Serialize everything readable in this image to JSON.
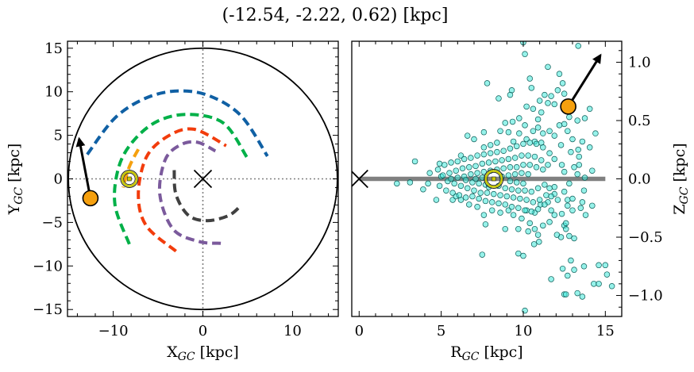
{
  "title": "(-12.54, -2.22, 0.62) [kpc]",
  "chart_data": [
    {
      "type": "line",
      "xlabel": "X",
      "xlabel_sub": "GC",
      "xlabel_unit": " [kpc]",
      "ylabel": "Y",
      "ylabel_sub": "GC",
      "ylabel_unit": " [kpc]",
      "xlim": [
        -15.1,
        15.1
      ],
      "ylim": [
        -15.8,
        15.8
      ],
      "xticks": [
        -10,
        0,
        10
      ],
      "yticks": [
        -15,
        -10,
        -5,
        0,
        5,
        10,
        15
      ],
      "grid": false,
      "boundary_circle_radius": 15,
      "galactic_center": [
        0,
        0
      ],
      "sun": [
        -8.2,
        0
      ],
      "object": [
        -12.54,
        -2.22
      ],
      "object_color": "#f5a00f",
      "velocity_arrow_to": [
        -13.8,
        4.6
      ],
      "arms": [
        {
          "color": "#1060a4",
          "points": [
            [
              -12.9,
              2.8
            ],
            [
              -9.8,
              7.0
            ],
            [
              -6.3,
              9.3
            ],
            [
              -2.7,
              10.1
            ],
            [
              0.8,
              9.5
            ],
            [
              4.3,
              7.2
            ],
            [
              7.2,
              2.6
            ]
          ]
        },
        {
          "color": "#00b048",
          "points": [
            [
              -8.2,
              -7.5
            ],
            [
              -9.8,
              -3.0
            ],
            [
              -9.4,
              1.3
            ],
            [
              -7.8,
              4.3
            ],
            [
              -5.1,
              6.6
            ],
            [
              -1.6,
              7.4
            ],
            [
              2.3,
              6.4
            ],
            [
              4.9,
              2.5
            ]
          ]
        },
        {
          "color": "#f23c0c",
          "points": [
            [
              -3.0,
              -8.3
            ],
            [
              -6.3,
              -5.4
            ],
            [
              -7.2,
              -1.8
            ],
            [
              -6.3,
              2.5
            ],
            [
              -3.9,
              4.9
            ],
            [
              -1.0,
              5.7
            ],
            [
              2.6,
              3.8
            ]
          ]
        },
        {
          "color": "#7b5a9c",
          "points": [
            [
              2.0,
              -7.4
            ],
            [
              -0.4,
              -7.2
            ],
            [
              -3.3,
              -5.8
            ],
            [
              -4.8,
              -1.8
            ],
            [
              -4.2,
              2.2
            ],
            [
              -2.5,
              3.9
            ],
            [
              -0.6,
              4.2
            ],
            [
              1.4,
              3.2
            ]
          ]
        },
        {
          "color": "#404040",
          "points": [
            [
              -3.2,
              1.0
            ],
            [
              -3.0,
              -1.8
            ],
            [
              -1.6,
              -4.2
            ],
            [
              0.5,
              -4.8
            ],
            [
              2.9,
              -4.2
            ],
            [
              4.3,
              -3.0
            ]
          ]
        },
        {
          "color": "#f5a00f",
          "points": [
            [
              -7.2,
              3.4
            ],
            [
              -8.2,
              1.4
            ],
            [
              -8.9,
              -1.0
            ]
          ]
        }
      ]
    },
    {
      "type": "scatter",
      "xlabel": "R",
      "xlabel_sub": "GC",
      "xlabel_unit": " [kpc]",
      "ylabel": "Z",
      "ylabel_sub": "GC",
      "ylabel_unit": " [kpc]",
      "xlim": [
        -0.45,
        16
      ],
      "ylim": [
        -1.18,
        1.18
      ],
      "xticks": [
        0,
        5,
        10,
        15
      ],
      "yticks": [
        -1.0,
        -0.5,
        0.0,
        0.5,
        1.0
      ],
      "ytick_labels": [
        "−1.0",
        "−0.5",
        "0.0",
        "0.5",
        "1.0"
      ],
      "grid": false,
      "disk_line": {
        "from": 0,
        "to": 15,
        "color": "#808080"
      },
      "galactic_center": [
        0,
        0
      ],
      "sun": [
        8.2,
        0
      ],
      "object": [
        12.74,
        0.62
      ],
      "object_color": "#f5a00f",
      "velocity_arrow_to": [
        14.7,
        1.06
      ],
      "marker_color": "#40e8d8",
      "points": [
        [
          10.0,
          1.17
        ],
        [
          10.1,
          1.07
        ],
        [
          13.35,
          1.14
        ],
        [
          11.5,
          0.96
        ],
        [
          12.2,
          0.9
        ],
        [
          7.8,
          0.82
        ],
        [
          10.4,
          0.86
        ],
        [
          10.5,
          0.78
        ],
        [
          12.4,
          0.82
        ],
        [
          9.3,
          0.76
        ],
        [
          9.2,
          0.72
        ],
        [
          8.5,
          0.69
        ],
        [
          12.1,
          0.76
        ],
        [
          12.5,
          0.73
        ],
        [
          11.3,
          0.72
        ],
        [
          11.7,
          0.71
        ],
        [
          11.0,
          0.67
        ],
        [
          11.5,
          0.65
        ],
        [
          11.9,
          0.64
        ],
        [
          10.2,
          0.62
        ],
        [
          10.6,
          0.6
        ],
        [
          14.05,
          0.6
        ],
        [
          11.1,
          0.57
        ],
        [
          13.75,
          0.52
        ],
        [
          9.75,
          0.52
        ],
        [
          9.35,
          0.49
        ],
        [
          8.9,
          0.48
        ],
        [
          10.9,
          0.51
        ],
        [
          10.1,
          0.46
        ],
        [
          12.8,
          0.53
        ],
        [
          13.3,
          0.5
        ],
        [
          14.4,
          0.39
        ],
        [
          6.6,
          0.37
        ],
        [
          7.0,
          0.34
        ],
        [
          7.6,
          0.4
        ],
        [
          8.6,
          0.41
        ],
        [
          9.1,
          0.4
        ],
        [
          3.4,
          0.15
        ],
        [
          14.05,
          0.27
        ],
        [
          14.2,
          0.07
        ],
        [
          13.75,
          0.01
        ],
        [
          2.3,
          -0.04
        ],
        [
          3.1,
          -0.03
        ],
        [
          3.9,
          -0.09
        ],
        [
          4.7,
          -0.18
        ],
        [
          5.7,
          -0.18
        ],
        [
          13.7,
          -0.1
        ],
        [
          13.6,
          -0.2
        ],
        [
          14.2,
          -0.23
        ],
        [
          13.8,
          -0.31
        ],
        [
          13.5,
          -0.25
        ],
        [
          7.5,
          -0.65
        ],
        [
          9.7,
          -0.64
        ],
        [
          10.0,
          -0.66
        ],
        [
          12.9,
          -0.7
        ],
        [
          12.4,
          -0.77
        ],
        [
          13.1,
          -0.78
        ],
        [
          13.7,
          -0.75
        ],
        [
          12.7,
          -0.83
        ],
        [
          14.6,
          -0.74
        ],
        [
          15.0,
          -0.74
        ],
        [
          15.1,
          -0.82
        ],
        [
          11.7,
          -0.86
        ],
        [
          14.3,
          -0.9
        ],
        [
          14.6,
          -0.9
        ],
        [
          15.4,
          -0.92
        ],
        [
          12.5,
          -0.99
        ],
        [
          12.6,
          -0.99
        ],
        [
          13.3,
          -0.98
        ],
        [
          13.6,
          -1.01
        ],
        [
          10.1,
          -1.13
        ],
        [
          13.1,
          -0.51
        ],
        [
          12.8,
          -0.49
        ],
        [
          12.3,
          -0.5
        ],
        [
          12.05,
          -0.48
        ],
        [
          10.96,
          -0.54
        ],
        [
          10.66,
          -0.56
        ],
        [
          10.9,
          -0.48
        ],
        [
          10.3,
          -0.45
        ],
        [
          9.7,
          -0.43
        ],
        [
          8.9,
          -0.43
        ],
        [
          7.7,
          -0.39
        ],
        [
          11.6,
          -0.37
        ],
        [
          12.5,
          -0.4
        ],
        [
          12.6,
          -0.43
        ],
        [
          12.6,
          -0.38
        ],
        [
          11.9,
          -0.31
        ],
        [
          12.35,
          -0.3
        ],
        [
          13.0,
          -0.27
        ],
        [
          12.7,
          -0.23
        ],
        [
          12.1,
          -0.18
        ],
        [
          12.7,
          -0.18
        ],
        [
          13.0,
          -0.17
        ],
        [
          12.8,
          -0.04
        ],
        [
          12.5,
          -0.11
        ],
        [
          11.9,
          -0.07
        ],
        [
          13.4,
          0.19
        ],
        [
          13.4,
          0.12
        ],
        [
          13.1,
          0.1
        ],
        [
          12.9,
          0.23
        ],
        [
          13.35,
          0.25
        ],
        [
          13.6,
          0.32
        ],
        [
          13.0,
          0.34
        ],
        [
          12.7,
          0.41
        ],
        [
          12.5,
          0.47
        ],
        [
          12.2,
          0.46
        ],
        [
          11.9,
          0.37
        ],
        [
          12.3,
          0.29
        ],
        [
          11.6,
          0.41
        ],
        [
          11.2,
          0.39
        ],
        [
          10.9,
          0.44
        ],
        [
          10.6,
          0.41
        ],
        [
          11.1,
          0.31
        ],
        [
          10.7,
          0.32
        ],
        [
          10.2,
          0.34
        ],
        [
          9.75,
          0.39
        ],
        [
          9.4,
          0.32
        ],
        [
          8.4,
          0.31
        ],
        [
          8.0,
          0.29
        ],
        [
          7.6,
          0.27
        ],
        [
          6.2,
          0.2
        ],
        [
          4.9,
          0.13
        ],
        [
          4.3,
          0.05
        ],
        [
          4.2,
          -0.04
        ],
        [
          12.35,
          0.12
        ],
        [
          12.5,
          0.06
        ],
        [
          13.3,
          0.04
        ],
        [
          11.9,
          0.17
        ],
        [
          11.9,
          -0.13
        ],
        [
          11.5,
          -0.2
        ],
        [
          11.7,
          -0.27
        ],
        [
          11.05,
          -0.22
        ],
        [
          10.7,
          -0.29
        ],
        [
          10.2,
          -0.27
        ],
        [
          9.9,
          -0.34
        ],
        [
          9.4,
          -0.31
        ],
        [
          9.1,
          -0.27
        ],
        [
          8.6,
          -0.29
        ],
        [
          8.1,
          -0.27
        ],
        [
          7.6,
          -0.31
        ],
        [
          7.2,
          -0.24
        ],
        [
          6.7,
          -0.22
        ],
        [
          6.2,
          -0.18
        ],
        [
          5.9,
          -0.15
        ],
        [
          10.4,
          -0.38
        ],
        [
          11.2,
          -0.4
        ],
        [
          10.7,
          -0.43
        ],
        [
          4.8,
          0.08
        ],
        [
          4.9,
          -0.06
        ],
        [
          5.0,
          0.02
        ],
        [
          5.2,
          0.12
        ],
        [
          5.3,
          -0.1
        ],
        [
          5.1,
          0.03
        ],
        [
          5.4,
          -0.02
        ],
        [
          5.6,
          0.14
        ],
        [
          5.7,
          -0.12
        ],
        [
          5.5,
          0.05
        ],
        [
          5.8,
          -0.04
        ],
        [
          5.6,
          0.0
        ],
        [
          6.0,
          0.15
        ],
        [
          6.1,
          -0.14
        ],
        [
          5.9,
          0.07
        ],
        [
          6.2,
          -0.06
        ],
        [
          6.0,
          0.01
        ],
        [
          6.4,
          0.17
        ],
        [
          6.5,
          -0.16
        ],
        [
          6.3,
          0.09
        ],
        [
          6.6,
          -0.08
        ],
        [
          6.4,
          0.02
        ],
        [
          6.5,
          -0.01
        ],
        [
          6.8,
          0.18
        ],
        [
          6.9,
          -0.15
        ],
        [
          6.7,
          0.1
        ],
        [
          7.0,
          -0.1
        ],
        [
          6.8,
          0.04
        ],
        [
          6.9,
          -0.03
        ],
        [
          7.2,
          0.2
        ],
        [
          7.3,
          -0.17
        ],
        [
          7.1,
          0.11
        ],
        [
          7.4,
          -0.12
        ],
        [
          7.2,
          0.05
        ],
        [
          7.3,
          -0.04
        ],
        [
          7.1,
          0.0
        ],
        [
          7.6,
          0.21
        ],
        [
          7.7,
          -0.19
        ],
        [
          7.5,
          0.13
        ],
        [
          7.8,
          -0.12
        ],
        [
          7.6,
          0.06
        ],
        [
          7.7,
          -0.05
        ],
        [
          7.5,
          0.01
        ],
        [
          8.0,
          0.22
        ],
        [
          8.1,
          -0.2
        ],
        [
          7.9,
          0.14
        ],
        [
          8.2,
          -0.13
        ],
        [
          8.0,
          0.07
        ],
        [
          7.9,
          -0.07
        ],
        [
          8.4,
          0.23
        ],
        [
          8.5,
          -0.21
        ],
        [
          8.3,
          0.15
        ],
        [
          8.6,
          -0.14
        ],
        [
          8.4,
          0.08
        ],
        [
          8.5,
          -0.06
        ],
        [
          8.8,
          0.24
        ],
        [
          8.9,
          -0.22
        ],
        [
          8.7,
          0.16
        ],
        [
          9.0,
          -0.15
        ],
        [
          8.8,
          0.09
        ],
        [
          8.9,
          -0.08
        ],
        [
          8.7,
          0.02
        ],
        [
          9.2,
          0.26
        ],
        [
          9.3,
          -0.24
        ],
        [
          9.1,
          0.17
        ],
        [
          9.4,
          -0.16
        ],
        [
          9.2,
          0.1
        ],
        [
          9.3,
          -0.09
        ],
        [
          9.1,
          0.03
        ],
        [
          9.2,
          -0.02
        ],
        [
          9.6,
          0.28
        ],
        [
          9.7,
          -0.25
        ],
        [
          9.5,
          0.18
        ],
        [
          9.8,
          -0.17
        ],
        [
          9.6,
          0.1
        ],
        [
          9.7,
          -0.1
        ],
        [
          9.5,
          0.04
        ],
        [
          9.6,
          -0.03
        ],
        [
          10.0,
          0.3
        ],
        [
          10.1,
          -0.27
        ],
        [
          9.9,
          0.2
        ],
        [
          10.2,
          -0.18
        ],
        [
          10.0,
          0.12
        ],
        [
          10.1,
          -0.1
        ],
        [
          9.9,
          0.05
        ],
        [
          10.0,
          -0.04
        ],
        [
          10.4,
          0.31
        ],
        [
          10.5,
          -0.28
        ],
        [
          10.3,
          0.2
        ],
        [
          10.6,
          -0.2
        ],
        [
          10.4,
          0.12
        ],
        [
          10.5,
          -0.11
        ],
        [
          10.3,
          0.04
        ],
        [
          10.8,
          0.3
        ],
        [
          10.9,
          -0.26
        ],
        [
          10.7,
          0.19
        ],
        [
          11.0,
          -0.18
        ],
        [
          10.8,
          0.1
        ],
        [
          10.9,
          -0.08
        ],
        [
          11.2,
          0.27
        ],
        [
          11.3,
          -0.22
        ],
        [
          11.1,
          0.16
        ],
        [
          11.4,
          -0.14
        ],
        [
          11.2,
          0.08
        ],
        [
          11.3,
          -0.05
        ],
        [
          11.6,
          0.22
        ],
        [
          11.7,
          -0.15
        ],
        [
          11.5,
          0.12
        ],
        [
          11.6,
          -0.08
        ]
      ]
    }
  ]
}
